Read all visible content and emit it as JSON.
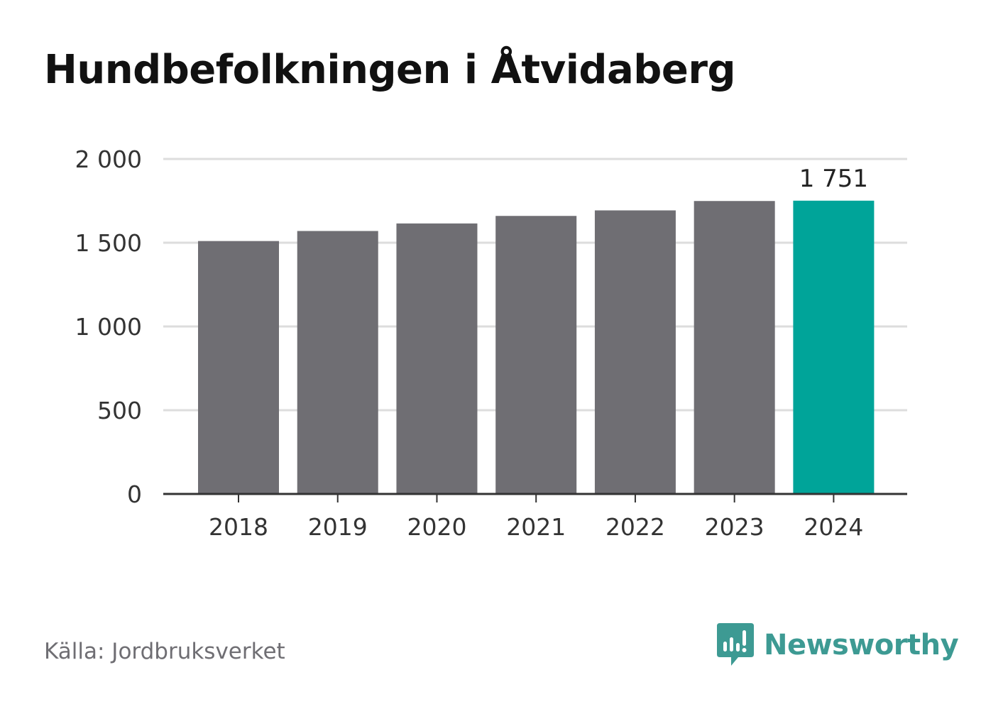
{
  "title": "Hundbefolkningen i Åtvidaberg",
  "source": "Källa: Jordbruksverket",
  "brand": {
    "name": "Newsworthy",
    "icon": "newsworthy-logo-icon",
    "color": "#3d9a93"
  },
  "colors": {
    "bar": "#6f6e73",
    "highlight": "#00a499",
    "grid": "#dddddd",
    "axis": "#333333"
  },
  "chart_data": {
    "type": "bar",
    "title": "Hundbefolkningen i Åtvidaberg",
    "categories": [
      "2018",
      "2019",
      "2020",
      "2021",
      "2022",
      "2023",
      "2024"
    ],
    "values": [
      1510,
      1570,
      1615,
      1660,
      1693,
      1749,
      1751
    ],
    "highlight_index": 6,
    "data_labels": [
      {
        "index": 6,
        "text": "1 751"
      }
    ],
    "yticks": [
      {
        "value": 0,
        "label": "0"
      },
      {
        "value": 500,
        "label": "500"
      },
      {
        "value": 1000,
        "label": "1 000"
      },
      {
        "value": 1500,
        "label": "1 500"
      },
      {
        "value": 2000,
        "label": "2 000"
      }
    ],
    "ylim": [
      0,
      2000
    ],
    "xlabel": "",
    "ylabel": "",
    "grid": true,
    "legend": "none"
  }
}
